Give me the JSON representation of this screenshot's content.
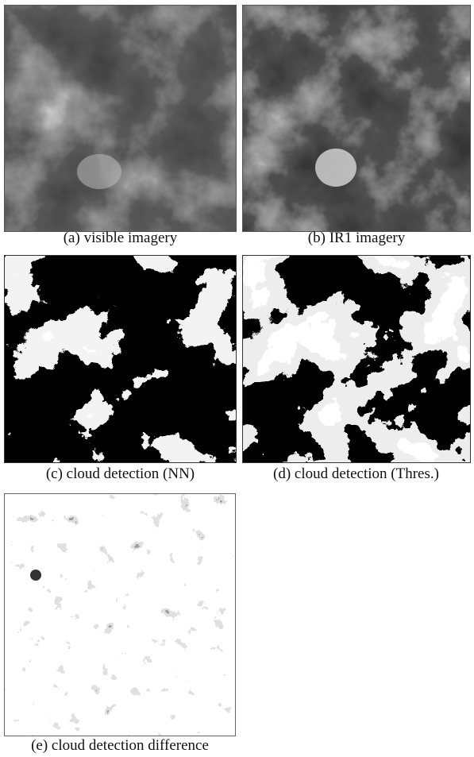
{
  "panels": [
    {
      "caption": "(a) visible imagery"
    },
    {
      "caption": "(b) IR1 imagery"
    },
    {
      "caption": "(c) cloud detection (NN)"
    },
    {
      "caption": "(d) cloud detection (Thres.)"
    },
    {
      "caption": "(e) cloud detection difference"
    }
  ]
}
